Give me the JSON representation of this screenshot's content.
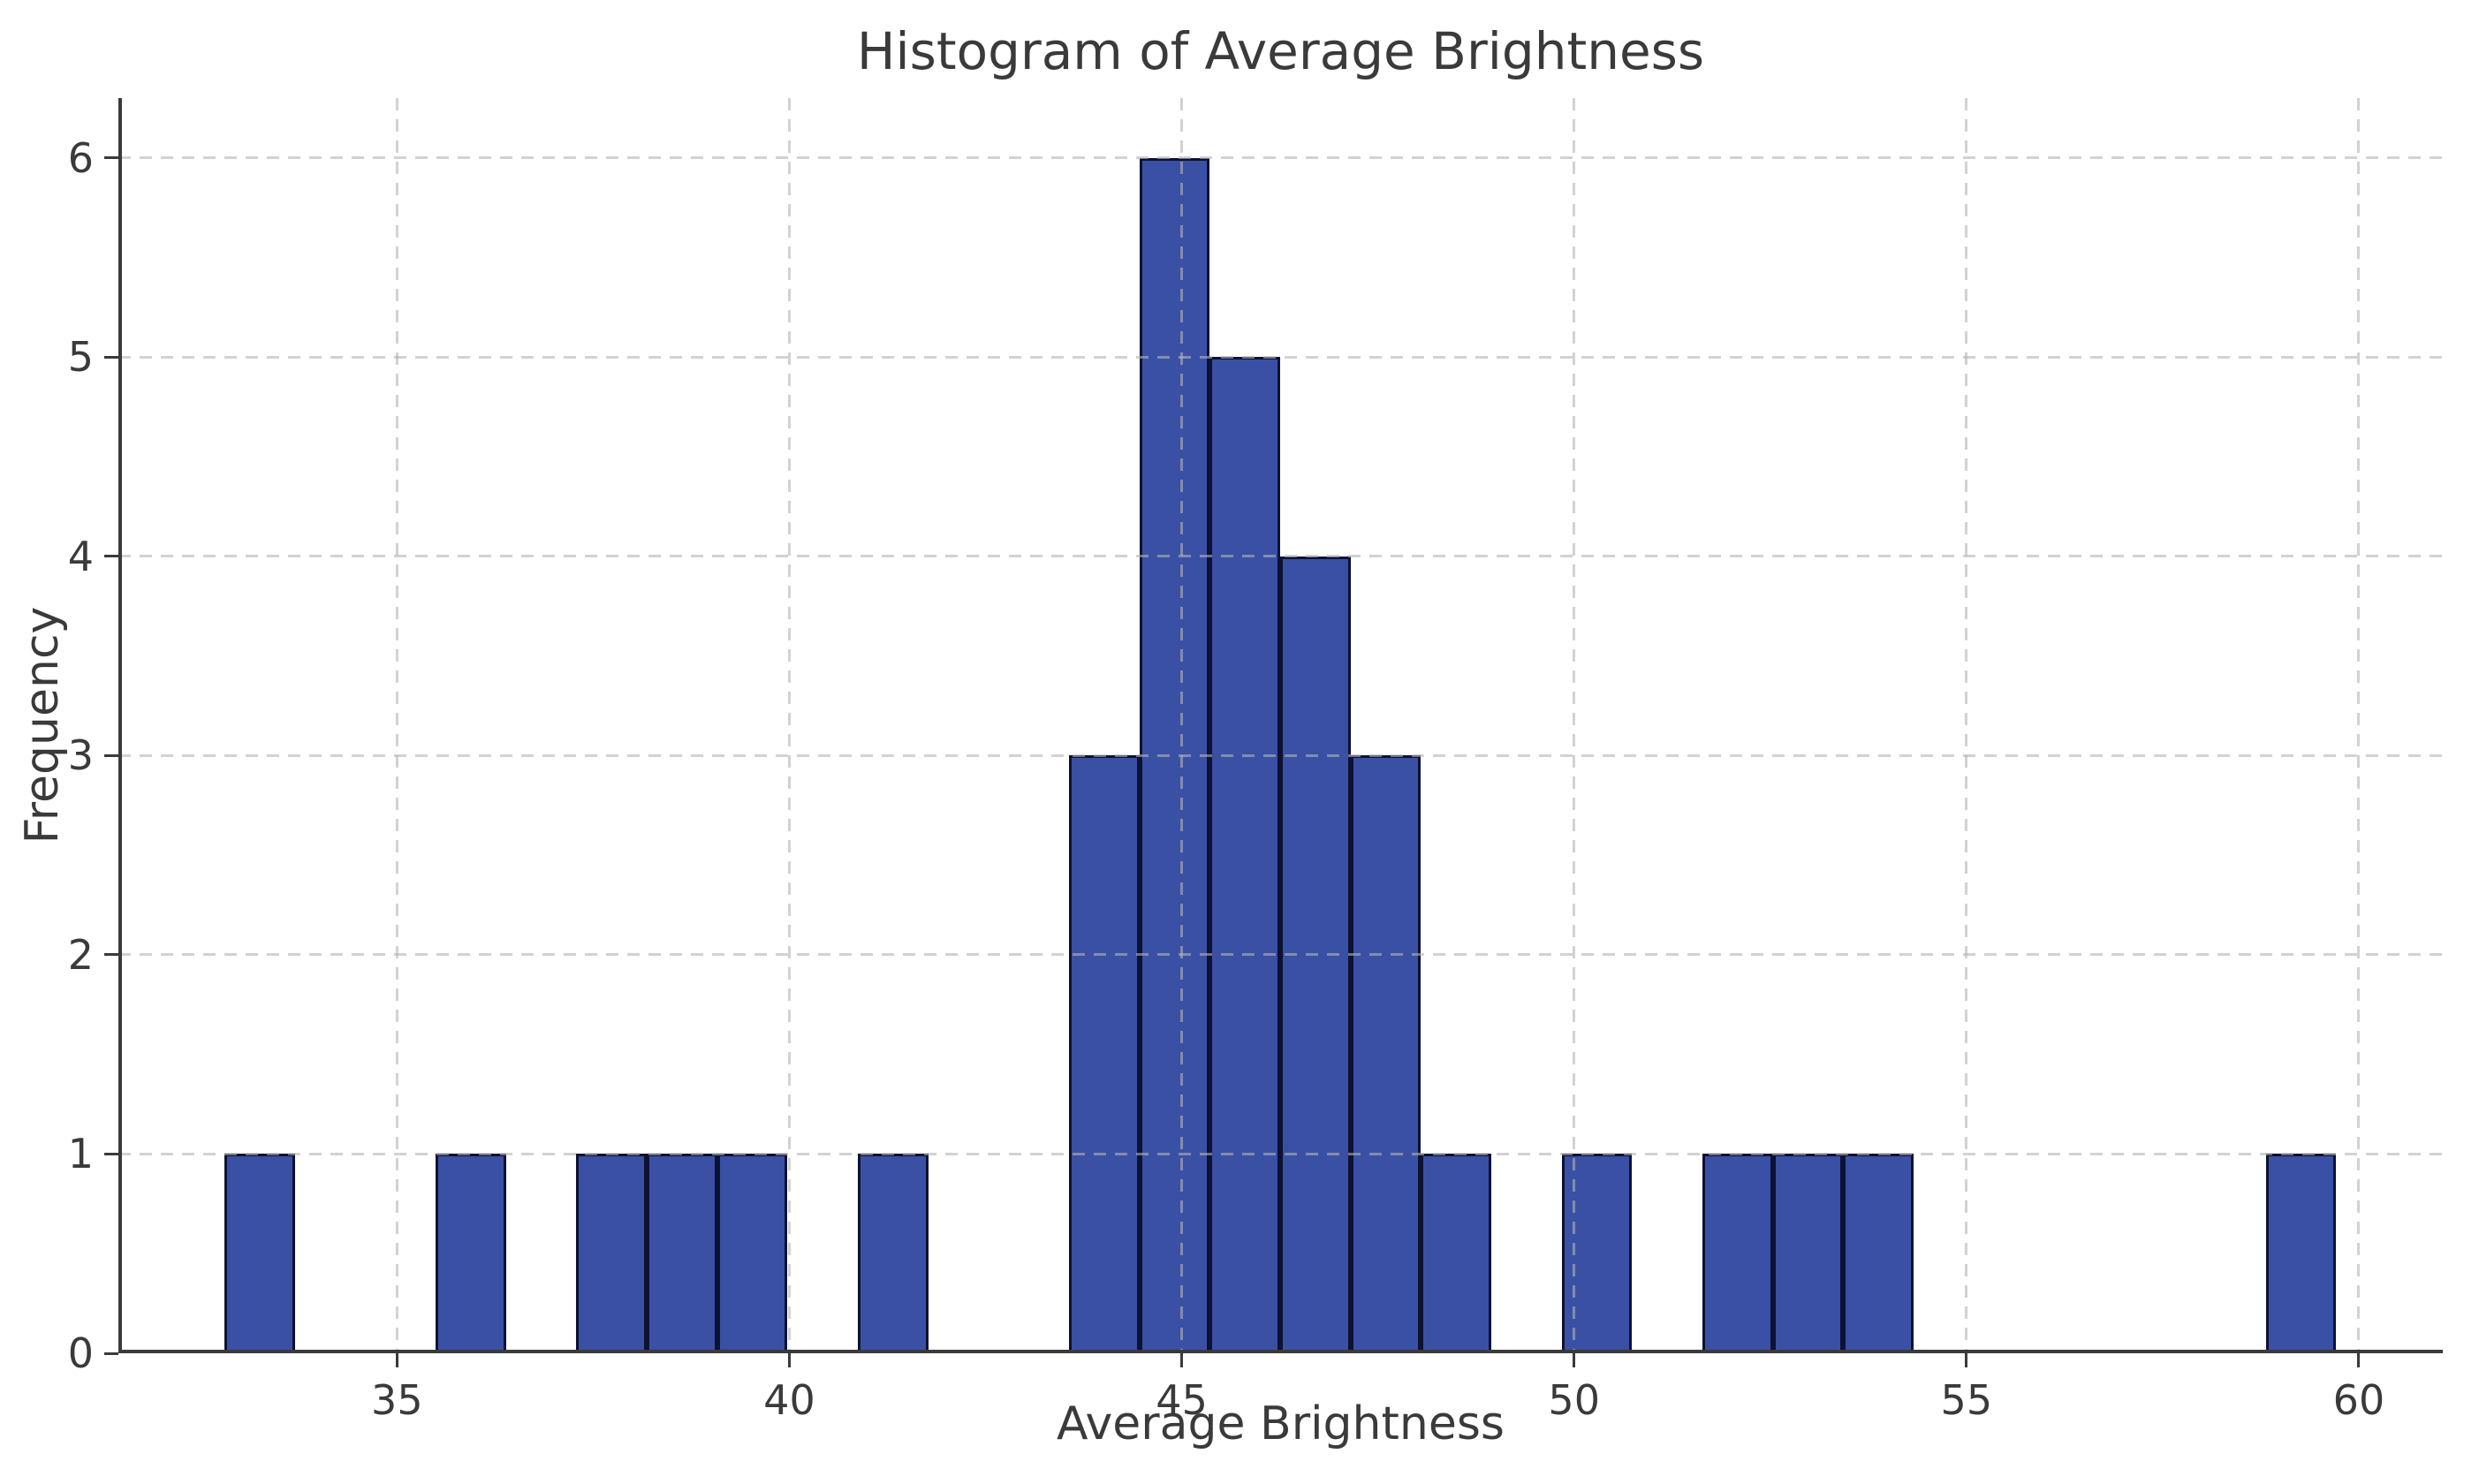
{
  "chart_data": {
    "type": "bar",
    "subtype": "histogram",
    "title": "Histogram of Average Brightness",
    "xlabel": "Average Brightness",
    "ylabel": "Frequency",
    "xlim": [
      31.45,
      61.07
    ],
    "ylim": [
      0,
      6.3
    ],
    "xticks": [
      35,
      40,
      45,
      50,
      55,
      60
    ],
    "yticks": [
      0,
      1,
      2,
      3,
      4,
      5,
      6
    ],
    "bins": {
      "start": 32.8,
      "width": 0.897,
      "count": 30
    },
    "counts": [
      1,
      0,
      0,
      1,
      0,
      1,
      1,
      1,
      0,
      1,
      0,
      0,
      3,
      6,
      5,
      4,
      3,
      1,
      0,
      1,
      0,
      1,
      1,
      1,
      0,
      0,
      0,
      0,
      0,
      1
    ],
    "grid": {
      "visible": true,
      "style": "dashed",
      "drawn_above_bars": true,
      "legend": "none"
    },
    "colors": {
      "bar_fill": "#3A50A5",
      "bar_edge": "#0d1232",
      "grid_rgb": "#b4b4b4",
      "grid_alpha": 0.6,
      "spine": "#3a3a3a",
      "text": "#3a3a3a",
      "background": "#ffffff"
    }
  }
}
